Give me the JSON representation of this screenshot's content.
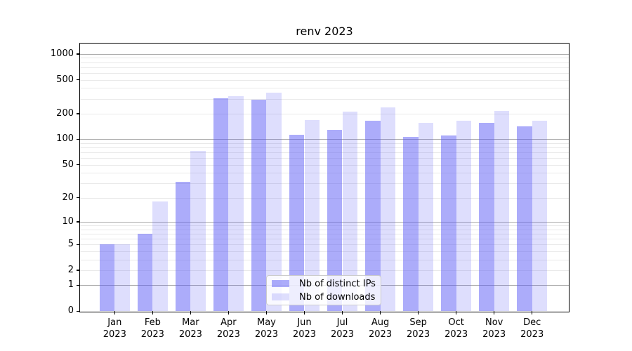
{
  "title": "renv 2023",
  "chart_data": {
    "type": "bar",
    "title": "renv 2023",
    "categories": [
      "Jan",
      "Feb",
      "Mar",
      "Apr",
      "May",
      "Jun",
      "Jul",
      "Aug",
      "Sep",
      "Oct",
      "Nov",
      "Dec"
    ],
    "year_label": "2023",
    "series": [
      {
        "name": "Nb of distinct IPs",
        "color": "rgba(89,89,245,0.5)",
        "values": [
          5,
          7,
          31,
          305,
          290,
          113,
          128,
          166,
          107,
          110,
          156,
          142
        ]
      },
      {
        "name": "Nb of downloads",
        "color": "rgba(89,89,245,0.2)",
        "values": [
          5,
          18,
          73,
          322,
          352,
          167,
          210,
          239,
          155,
          165,
          217,
          166
        ]
      }
    ],
    "y_ticks": [
      0,
      1,
      2,
      5,
      10,
      20,
      50,
      100,
      200,
      500,
      1000
    ],
    "y_scale": "log1p",
    "ylim": [
      0,
      1320
    ],
    "grid": true,
    "legend_position": "lower center",
    "colors": {
      "bar_base": "#5959f5",
      "grid_minor": "#e9e9e9",
      "grid_major": "#ababab",
      "spine": "#000000",
      "background": "#ffffff"
    }
  }
}
